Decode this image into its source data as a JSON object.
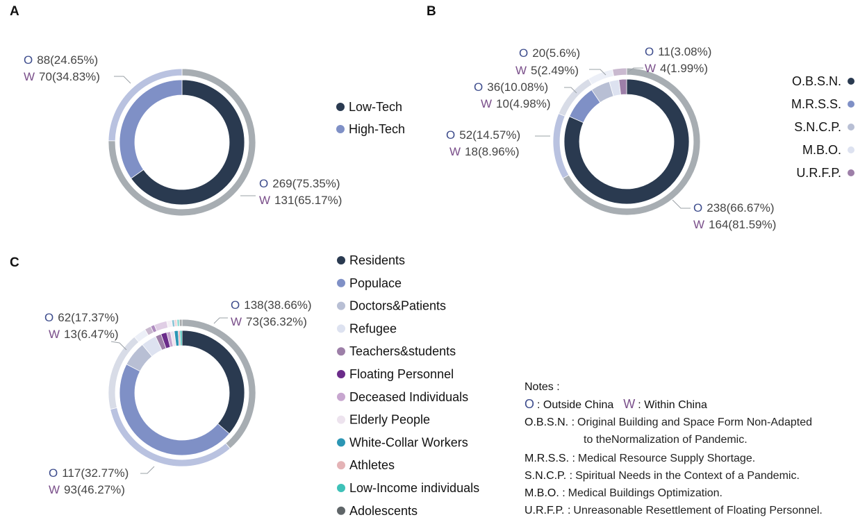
{
  "colors": {
    "outer_ring": "#a7adb2",
    "navy": "#2a3a50",
    "periwinkle": "#7f90c6",
    "light_blue_gray": "#b8bfd4",
    "pale_lavender": "#dde2f0",
    "mauve": "#9d7fa8",
    "purple": "#6b2c8a",
    "pink_lilac": "#c7a6cf",
    "very_pale_pink": "#ede3ee",
    "teal_blue": "#2c96b4",
    "salmon": "#e4b3b6",
    "teal": "#3ec1b8",
    "dark_gray": "#5f6568",
    "o_marker": "#3d4c8c",
    "w_marker": "#7a4f8a"
  },
  "chart_data": [
    {
      "panel": "A",
      "type": "pie",
      "subtype": "nested-donut",
      "categories": [
        "Low-Tech",
        "High-Tech"
      ],
      "series": [
        {
          "name": "Outside China",
          "prefix": "O",
          "ring": "outer",
          "values": [
            269,
            88
          ],
          "percents": [
            "75.35%",
            "24.65%"
          ]
        },
        {
          "name": "Within China",
          "prefix": "W",
          "ring": "inner",
          "values": [
            131,
            70
          ],
          "percents": [
            "65.17%",
            "34.83%"
          ]
        }
      ],
      "legend": [
        {
          "name": "Low-Tech",
          "color": "#2a3a50"
        },
        {
          "name": "High-Tech",
          "color": "#7f90c6"
        }
      ],
      "labels": [
        {
          "o": "88(24.65%)",
          "w": "70(34.83%)"
        },
        {
          "o": "269(75.35%)",
          "w": "131(65.17%)"
        }
      ]
    },
    {
      "panel": "B",
      "type": "pie",
      "subtype": "nested-donut",
      "categories": [
        "O.B.S.N.",
        "M.R.S.S.",
        "S.N.C.P.",
        "M.B.O.",
        "U.R.F.P."
      ],
      "series": [
        {
          "name": "Outside China",
          "prefix": "O",
          "ring": "outer",
          "values": [
            238,
            52,
            36,
            20,
            11
          ],
          "percents": [
            "66.67%",
            "14.57%",
            "10.08%",
            "5.6%",
            "3.08%"
          ]
        },
        {
          "name": "Within China",
          "prefix": "W",
          "ring": "inner",
          "values": [
            164,
            18,
            10,
            5,
            4
          ],
          "percents": [
            "81.59%",
            "8.96%",
            "4.98%",
            "2.49%",
            "1.99%"
          ]
        }
      ],
      "legend": [
        {
          "name": "O.B.S.N.",
          "color": "#2a3a50"
        },
        {
          "name": "M.R.S.S.",
          "color": "#7f90c6"
        },
        {
          "name": "S.N.C.P.",
          "color": "#b8bfd4"
        },
        {
          "name": "M.B.O.",
          "color": "#dde2f0"
        },
        {
          "name": "U.R.F.P.",
          "color": "#9d7fa8"
        }
      ],
      "labels": [
        {
          "o": "20(5.6%)",
          "w": "5(2.49%)"
        },
        {
          "o": "11(3.08%)",
          "w": "4(1.99%)"
        },
        {
          "o": "36(10.08%)",
          "w": "10(4.98%)"
        },
        {
          "o": "52(14.57%)",
          "w": "18(8.96%)"
        },
        {
          "o": "238(66.67%)",
          "w": "164(81.59%)"
        }
      ]
    },
    {
      "panel": "C",
      "type": "pie",
      "subtype": "nested-donut",
      "categories": [
        "Residents",
        "Populace",
        "Doctors&Patients",
        "Refugee",
        "Teachers&students",
        "Floating Personnel",
        "Deceased Individuals",
        "Elderly People",
        "White-Collar Workers",
        "Athletes",
        "Low-Income individuals",
        "Adolescents"
      ],
      "series": [
        {
          "name": "Outside China",
          "prefix": "O",
          "ring": "outer",
          "values": [
            138,
            117,
            62,
            10,
            5,
            3,
            10,
            4,
            2,
            2,
            2,
            2
          ],
          "percents": [
            "38.66%",
            "32.77%",
            "17.37%",
            "",
            "",
            "",
            "",
            "",
            "",
            "",
            "",
            ""
          ]
        },
        {
          "name": "Within China",
          "prefix": "W",
          "ring": "inner",
          "values": [
            73,
            93,
            13,
            8,
            3,
            3,
            2,
            2,
            2,
            1,
            1,
            0
          ],
          "percents": [
            "36.32%",
            "46.27%",
            "6.47%",
            "",
            "",
            "",
            "",
            "",
            "",
            "",
            "",
            ""
          ]
        }
      ],
      "legend": [
        {
          "name": "Residents",
          "color": "#2a3a50"
        },
        {
          "name": "Populace",
          "color": "#7f90c6"
        },
        {
          "name": "Doctors&Patients",
          "color": "#b8bfd4"
        },
        {
          "name": "Refugee",
          "color": "#dde2f0"
        },
        {
          "name": "Teachers&students",
          "color": "#9d7fa8"
        },
        {
          "name": "Floating Personnel",
          "color": "#6b2c8a"
        },
        {
          "name": "Deceased Individuals",
          "color": "#c7a6cf"
        },
        {
          "name": "Elderly People",
          "color": "#ede3ee"
        },
        {
          "name": "White-Collar Workers",
          "color": "#2c96b4"
        },
        {
          "name": "Athletes",
          "color": "#e4b3b6"
        },
        {
          "name": "Low-Income individuals",
          "color": "#3ec1b8"
        },
        {
          "name": "Adolescents",
          "color": "#5f6568"
        }
      ],
      "labels": [
        {
          "o": "138(38.66%)",
          "w": "73(36.32%)"
        },
        {
          "o": "62(17.37%)",
          "w": "13(6.47%)"
        },
        {
          "o": "117(32.77%)",
          "w": "93(46.27%)"
        }
      ]
    }
  ],
  "notes": {
    "title": "Notes :",
    "o_letter": "O",
    "o_text": ": Outside China",
    "w_letter": "W",
    "w_text": ": Within China",
    "items": [
      {
        "abbr": "O.B.S.N. :",
        "text": "Original Building and Space Form Non-Adapted"
      },
      {
        "abbr": "",
        "text": "to theNormalization of Pandemic."
      },
      {
        "abbr": "M.R.S.S. :",
        "text": "Medical Resource Supply Shortage."
      },
      {
        "abbr": "S.N.C.P. :",
        "text": "Spiritual Needs in the Context of a Pandemic."
      },
      {
        "abbr": "M.B.O. :",
        "text": "Medical Buildings Optimization."
      },
      {
        "abbr": "U.R.F.P. :",
        "text": "Unreasonable Resettlement of Floating Personnel."
      }
    ]
  }
}
